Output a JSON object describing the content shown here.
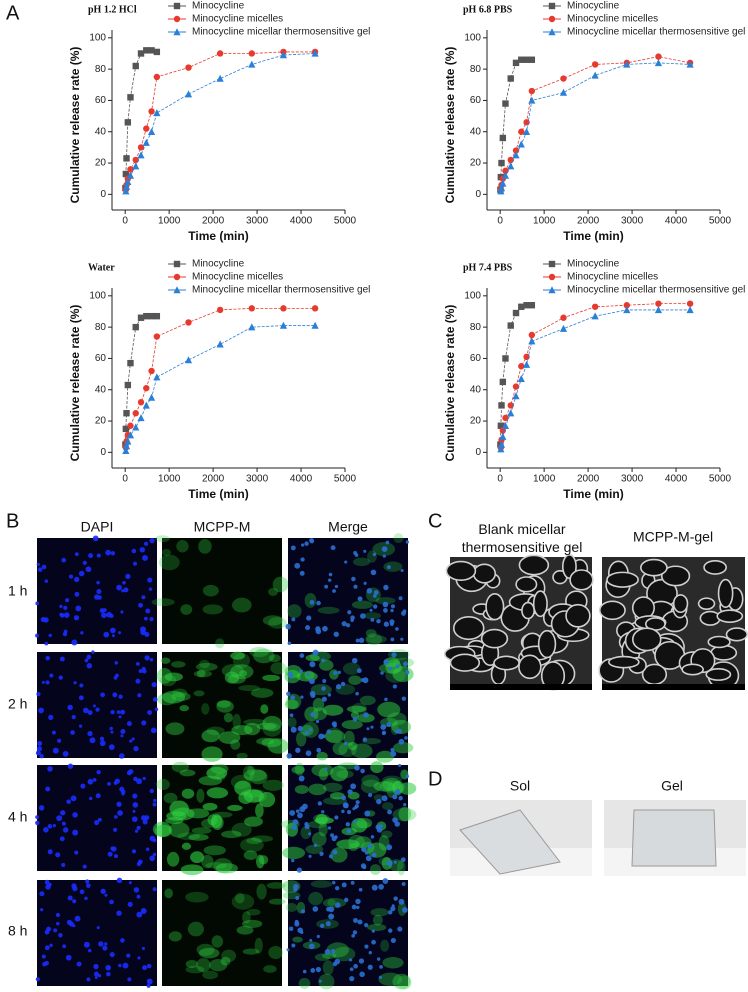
{
  "chart_data": [
    {
      "type": "line",
      "title": "pH 1.2 HCl",
      "x_label": "Time (min)",
      "y_label": "Cumulative release rate (%)",
      "xlim": [
        -300,
        5000
      ],
      "xticks": [
        0,
        1000,
        2000,
        3000,
        4000,
        5000
      ],
      "ylim": [
        -10,
        105
      ],
      "yticks": [
        0,
        20,
        40,
        60,
        80,
        100
      ],
      "series": [
        {
          "name": "Minocycline",
          "color": "#555555",
          "marker": "square",
          "x": [
            5,
            15,
            30,
            60,
            120,
            240,
            360,
            480,
            600,
            720
          ],
          "values": [
            4,
            13,
            23,
            46,
            62,
            82,
            90,
            92,
            92,
            91
          ]
        },
        {
          "name": "Minocycline micelles",
          "color": "#e8392f",
          "marker": "circle",
          "x": [
            15,
            30,
            60,
            120,
            240,
            360,
            480,
            600,
            720,
            1440,
            2160,
            2880,
            3600,
            4320
          ],
          "values": [
            3,
            6,
            10,
            16,
            22,
            30,
            42,
            53,
            75,
            81,
            90,
            90,
            91,
            91
          ]
        },
        {
          "name": "Minocycline micellar thermosensitive gel",
          "color": "#2a7fd6",
          "marker": "triangle",
          "x": [
            15,
            30,
            60,
            120,
            240,
            360,
            480,
            600,
            720,
            1440,
            2160,
            2880,
            3600,
            4320
          ],
          "values": [
            2,
            5,
            8,
            12,
            18,
            25,
            33,
            40,
            52,
            64,
            74,
            83,
            89,
            90
          ]
        }
      ]
    },
    {
      "type": "line",
      "title": "pH 6.8 PBS",
      "x_label": "Time (min)",
      "y_label": "Cumulative release rate (%)",
      "xlim": [
        -300,
        5000
      ],
      "xticks": [
        0,
        1000,
        2000,
        3000,
        4000,
        5000
      ],
      "ylim": [
        -10,
        105
      ],
      "yticks": [
        0,
        20,
        40,
        60,
        80,
        100
      ],
      "series": [
        {
          "name": "Minocycline",
          "color": "#555555",
          "marker": "square",
          "x": [
            5,
            15,
            30,
            60,
            120,
            240,
            360,
            480,
            600,
            720
          ],
          "values": [
            3,
            11,
            20,
            36,
            58,
            74,
            84,
            86,
            86,
            86
          ]
        },
        {
          "name": "Minocycline micelles",
          "color": "#e8392f",
          "marker": "circle",
          "x": [
            15,
            30,
            60,
            120,
            240,
            360,
            480,
            600,
            720,
            1440,
            2160,
            2880,
            3600,
            4320
          ],
          "values": [
            3,
            6,
            10,
            15,
            22,
            28,
            40,
            46,
            66,
            74,
            83,
            84,
            88,
            84
          ]
        },
        {
          "name": "Minocycline micellar thermosensitive gel",
          "color": "#2a7fd6",
          "marker": "triangle",
          "x": [
            15,
            30,
            60,
            120,
            240,
            360,
            480,
            600,
            720,
            1440,
            2160,
            2880,
            3600,
            4320
          ],
          "values": [
            2,
            4,
            7,
            12,
            18,
            25,
            32,
            40,
            60,
            65,
            76,
            83,
            84,
            83
          ]
        }
      ]
    },
    {
      "type": "line",
      "title": "Water",
      "x_label": "Time (min)",
      "y_label": "Cumulative release rate (%)",
      "xlim": [
        -300,
        5000
      ],
      "xticks": [
        0,
        1000,
        2000,
        3000,
        4000,
        5000
      ],
      "ylim": [
        -10,
        105
      ],
      "yticks": [
        0,
        20,
        40,
        60,
        80,
        100
      ],
      "series": [
        {
          "name": "Minocycline",
          "color": "#555555",
          "marker": "square",
          "x": [
            5,
            15,
            30,
            60,
            120,
            240,
            360,
            480,
            600,
            720
          ],
          "values": [
            5,
            15,
            25,
            43,
            57,
            80,
            86,
            87,
            87,
            87
          ]
        },
        {
          "name": "Minocycline micelles",
          "color": "#e8392f",
          "marker": "circle",
          "x": [
            15,
            30,
            60,
            120,
            240,
            360,
            480,
            600,
            720,
            1440,
            2160,
            2880,
            3600,
            4320
          ],
          "values": [
            3,
            7,
            11,
            17,
            25,
            32,
            41,
            52,
            74,
            83,
            91,
            92,
            92,
            92
          ]
        },
        {
          "name": "Minocycline micellar thermosensitive gel",
          "color": "#2a7fd6",
          "marker": "triangle",
          "x": [
            15,
            30,
            60,
            120,
            240,
            360,
            480,
            600,
            720,
            1440,
            2160,
            2880,
            3600,
            4320
          ],
          "values": [
            1,
            4,
            7,
            11,
            16,
            22,
            30,
            35,
            48,
            59,
            69,
            80,
            81,
            81
          ]
        }
      ]
    },
    {
      "type": "line",
      "title": "pH 7.4 PBS",
      "x_label": "Time (min)",
      "y_label": "Cumulative release rate (%)",
      "xlim": [
        -300,
        5000
      ],
      "xticks": [
        0,
        1000,
        2000,
        3000,
        4000,
        5000
      ],
      "ylim": [
        -10,
        105
      ],
      "yticks": [
        0,
        20,
        40,
        60,
        80,
        100
      ],
      "series": [
        {
          "name": "Minocycline",
          "color": "#555555",
          "marker": "square",
          "x": [
            5,
            15,
            30,
            60,
            120,
            240,
            360,
            480,
            600,
            720
          ],
          "values": [
            5,
            17,
            30,
            45,
            60,
            81,
            89,
            93,
            94,
            94
          ]
        },
        {
          "name": "Minocycline micelles",
          "color": "#e8392f",
          "marker": "circle",
          "x": [
            15,
            30,
            60,
            120,
            240,
            360,
            480,
            600,
            720,
            1440,
            2160,
            2880,
            3600,
            4320
          ],
          "values": [
            3,
            8,
            14,
            22,
            30,
            42,
            55,
            61,
            75,
            86,
            93,
            94,
            95,
            95
          ]
        },
        {
          "name": "Minocycline micellar thermosensitive gel",
          "color": "#2a7fd6",
          "marker": "triangle",
          "x": [
            15,
            30,
            60,
            120,
            240,
            360,
            480,
            600,
            720,
            1440,
            2160,
            2880,
            3600,
            4320
          ],
          "values": [
            2,
            5,
            10,
            17,
            25,
            36,
            47,
            56,
            71,
            79,
            87,
            91,
            91,
            91
          ]
        }
      ]
    }
  ],
  "panel_labels": [
    "A",
    "B",
    "C",
    "D"
  ],
  "fluorescence": {
    "columns": [
      "DAPI",
      "MCPP-M",
      "Merge"
    ],
    "rows": [
      "1 h",
      "2 h",
      "4 h",
      "8 h"
    ]
  },
  "sem": {
    "titles": [
      "Blank micellar thermosensitive gel",
      "MCPP-M-gel"
    ]
  },
  "photos": {
    "titles": [
      "Sol",
      "Gel"
    ]
  }
}
